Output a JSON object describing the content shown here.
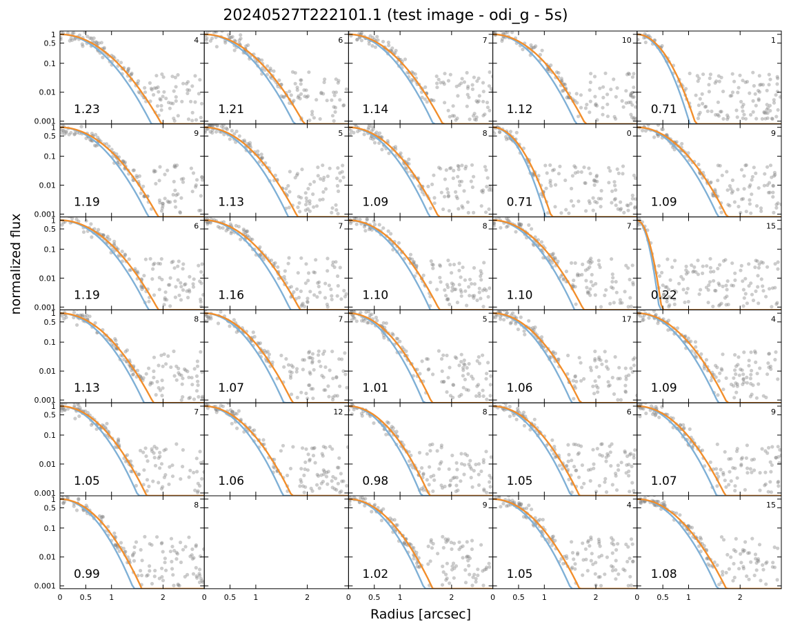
{
  "figure": {
    "title": "20240527T222101.1 (test image - odi_g - 5s)",
    "xlabel": "Radius [arcsec]",
    "ylabel": "normalized flux"
  },
  "colors": {
    "points": "#808080",
    "fit_blue": "#7fb0d6",
    "fit_orange": "#f28e2b",
    "frame": "#000000"
  },
  "chart_data": {
    "type": "scatter",
    "layout": "6x5 grid of small panels",
    "yscale": "log",
    "ylim": [
      0.0008,
      1.3
    ],
    "yticks": [
      1,
      0.5,
      0.1,
      0.01,
      0.001
    ],
    "ytick_labels": [
      "1",
      "0.5",
      "0.1",
      "0.01",
      "0.001"
    ],
    "x_tick_positions": [
      0,
      0.5,
      1,
      2
    ],
    "x_tick_labels": [
      "0",
      "0.5",
      "1",
      "2"
    ],
    "xlim": [
      0,
      2.8
    ],
    "series": [
      {
        "name": "",
        "kind": "points",
        "color": "#808080"
      },
      {
        "name": "",
        "kind": "fit-narrow",
        "color": "#7fb0d6"
      },
      {
        "name": "",
        "kind": "fit-wide",
        "color": "#f28e2b"
      }
    ],
    "panels": [
      [
        {
          "fwhm": "1.23",
          "count": "4",
          "empty": false
        },
        {
          "fwhm": "1.21",
          "count": "6",
          "empty": false
        },
        {
          "fwhm": "1.14",
          "count": "7",
          "empty": false
        },
        {
          "fwhm": "1.12",
          "count": "10",
          "empty": false
        },
        {
          "fwhm": "0.71",
          "count": "1",
          "empty": false
        }
      ],
      [
        {
          "fwhm": "1.19",
          "count": "9",
          "empty": false
        },
        {
          "fwhm": "1.13",
          "count": "5",
          "empty": false
        },
        {
          "fwhm": "1.09",
          "count": "8",
          "empty": false
        },
        {
          "fwhm": "0.71",
          "count": "0",
          "empty": false
        },
        {
          "fwhm": "1.09",
          "count": "9",
          "empty": false
        }
      ],
      [
        {
          "fwhm": "1.19",
          "count": "6",
          "empty": false
        },
        {
          "fwhm": "1.16",
          "count": "7",
          "empty": false
        },
        {
          "fwhm": "1.10",
          "count": "8",
          "empty": false
        },
        {
          "fwhm": "1.10",
          "count": "7",
          "empty": false
        },
        {
          "fwhm": "0.22",
          "count": "15",
          "empty": false
        }
      ],
      [
        {
          "fwhm": "1.13",
          "count": "8",
          "empty": false
        },
        {
          "fwhm": "1.07",
          "count": "7",
          "empty": false
        },
        {
          "fwhm": "1.01",
          "count": "5",
          "empty": false
        },
        {
          "fwhm": "1.06",
          "count": "17",
          "empty": false
        },
        {
          "fwhm": "1.09",
          "count": "4",
          "empty": false
        }
      ],
      [
        {
          "fwhm": "1.05",
          "count": "7",
          "empty": false
        },
        {
          "fwhm": "1.06",
          "count": "12",
          "empty": false
        },
        {
          "fwhm": "0.98",
          "count": "8",
          "empty": false
        },
        {
          "fwhm": "1.05",
          "count": "6",
          "empty": false
        },
        {
          "fwhm": "1.07",
          "count": "9",
          "empty": false
        }
      ],
      [
        {
          "fwhm": "0.99",
          "count": "8",
          "empty": false
        },
        {
          "fwhm": "",
          "count": "",
          "empty": true
        },
        {
          "fwhm": "1.02",
          "count": "9",
          "empty": false
        },
        {
          "fwhm": "1.05",
          "count": "4",
          "empty": false
        },
        {
          "fwhm": "1.08",
          "count": "15",
          "empty": false
        }
      ]
    ]
  }
}
